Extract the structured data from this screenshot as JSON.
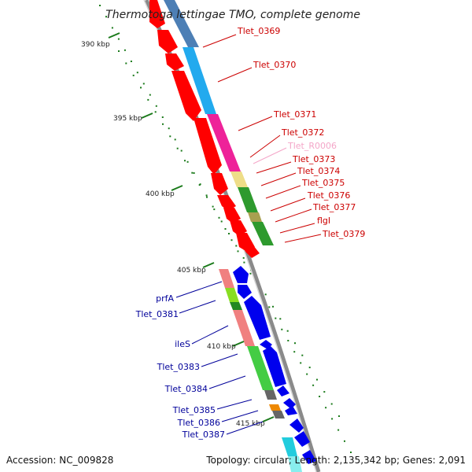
{
  "title": "Thermotoga lettingae TMO, complete genome",
  "ticks": [
    "390 kbp",
    "395 kbp",
    "400 kbp",
    "405 kbp",
    "410 kbp",
    "415 kbp"
  ],
  "genes_top": [
    "Tlet_0369",
    "Tlet_0370",
    "Tlet_0371",
    "Tlet_0372",
    "Tlet_R0006",
    "Tlet_0373",
    "Tlet_0374",
    "Tlet_0375",
    "Tlet_0376",
    "Tlet_0377",
    "flgI",
    "Tlet_0379"
  ],
  "genes_bottom": [
    "prfA",
    "Tlet_0381",
    "ileS",
    "Tlet_0383",
    "Tlet_0384",
    "Tlet_0385",
    "Tlet_0386",
    "Tlet_0387"
  ],
  "colors": {
    "forward_strand": "#ff0000",
    "reverse_strand": "#0000ee",
    "top_label": "#cc0000",
    "rna_label": "#f4a6c8",
    "bottom_label": "#00009a",
    "backbone": "#8a8a8a",
    "tick": "#1a7a1a"
  },
  "footer": {
    "accession": "Accession: NC_009828",
    "stats": "Topology: circular; Length: 2,135,342 bp; Genes: 2,091"
  }
}
